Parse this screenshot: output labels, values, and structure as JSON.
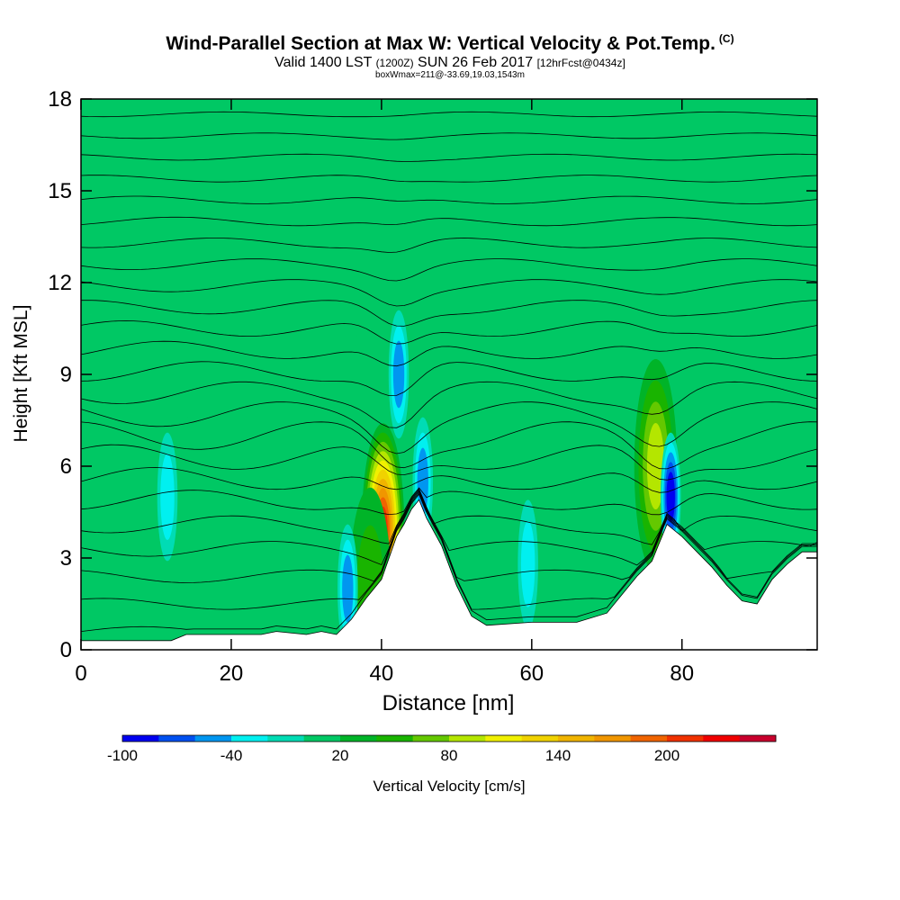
{
  "title": {
    "main": "Wind-Parallel Section at Max W: Vertical Velocity & Pot.Temp.",
    "units_flag": "(C)",
    "valid_prefix": "Valid 1400 LST",
    "valid_utc": "(1200Z)",
    "valid_date": "SUN 26 Feb 2017",
    "forecast": "[12hrFcst@0434z]",
    "box_info": "boxWmax=211@-33.69,19.03,1543m"
  },
  "chart_data": {
    "type": "heatmap",
    "xlabel": "Distance [nm]",
    "ylabel": "Height [Kft MSL]",
    "xlim": [
      0,
      98
    ],
    "ylim": [
      0,
      18
    ],
    "x_ticks": [
      0,
      20,
      40,
      60,
      80
    ],
    "y_ticks": [
      0,
      3,
      6,
      9,
      12,
      15,
      18
    ],
    "tick_labels_x": [
      "0",
      "20",
      "40",
      "60",
      "80"
    ],
    "tick_labels_y": [
      "0",
      "3",
      "6",
      "9",
      "12",
      "15",
      "18"
    ],
    "colorbar": {
      "label": "Vertical Velocity [cm/s]",
      "min": -100,
      "step": 20,
      "colors": [
        "#0000f0",
        "#0050f0",
        "#0096f0",
        "#00f0f0",
        "#00dcb4",
        "#00c864",
        "#00b428",
        "#19b400",
        "#64c800",
        "#b4e600",
        "#f0f000",
        "#f0d200",
        "#f0b400",
        "#f09600",
        "#f06400",
        "#f03200",
        "#f00000",
        "#c8002d"
      ],
      "tick_values": [
        -100,
        -40,
        20,
        80,
        140,
        200
      ],
      "tick_labels": [
        "-100",
        "-40",
        "20",
        "80",
        "140",
        "200"
      ]
    },
    "terrain_kft": [
      [
        0,
        0.3
      ],
      [
        12,
        0.3
      ],
      [
        14,
        0.5
      ],
      [
        24,
        0.5
      ],
      [
        26,
        0.6
      ],
      [
        30,
        0.5
      ],
      [
        32,
        0.6
      ],
      [
        34,
        0.5
      ],
      [
        36,
        1.0
      ],
      [
        38,
        1.7
      ],
      [
        40,
        2.3
      ],
      [
        42,
        3.7
      ],
      [
        43,
        4.1
      ],
      [
        44,
        4.6
      ],
      [
        45,
        4.9
      ],
      [
        46,
        4.3
      ],
      [
        48,
        3.4
      ],
      [
        50,
        2.1
      ],
      [
        52,
        1.1
      ],
      [
        54,
        0.8
      ],
      [
        60,
        0.9
      ],
      [
        62,
        0.9
      ],
      [
        66,
        0.9
      ],
      [
        70,
        1.2
      ],
      [
        72,
        1.8
      ],
      [
        74,
        2.4
      ],
      [
        76,
        2.9
      ],
      [
        77,
        3.5
      ],
      [
        78,
        4.1
      ],
      [
        80,
        3.7
      ],
      [
        82,
        3.2
      ],
      [
        84,
        2.7
      ],
      [
        86,
        2.1
      ],
      [
        88,
        1.6
      ],
      [
        90,
        1.5
      ],
      [
        92,
        2.3
      ],
      [
        94,
        2.8
      ],
      [
        96,
        3.2
      ],
      [
        98,
        3.2
      ]
    ],
    "updrafts": [
      {
        "x": 40.2,
        "z": 3.9,
        "peak_cms": 211
      },
      {
        "x": 38.5,
        "z": 1.8,
        "peak_cms": 40
      },
      {
        "x": 76.5,
        "z": 6.0,
        "peak_cms": 90
      }
    ],
    "downdrafts": [
      {
        "x": 78.5,
        "z": 5.0,
        "peak_cms": -100
      },
      {
        "x": 45.5,
        "z": 5.5,
        "peak_cms": -60
      },
      {
        "x": 42.3,
        "z": 9.0,
        "peak_cms": -60
      },
      {
        "x": 35.5,
        "z": 2.0,
        "peak_cms": -60
      },
      {
        "x": 11.5,
        "z": 5.0,
        "peak_cms": -50
      },
      {
        "x": 59.5,
        "z": 2.8,
        "peak_cms": -40
      }
    ],
    "isentrope_base_kft": [
      0.6,
      1.5,
      2.4,
      3.3,
      4.1,
      4.9,
      5.6,
      6.3,
      7.0,
      7.7,
      8.4,
      9.1,
      9.8,
      10.5,
      11.2,
      11.9,
      12.6,
      13.3,
      14.0,
      14.7,
      15.4,
      16.1,
      16.8,
      17.5
    ]
  }
}
